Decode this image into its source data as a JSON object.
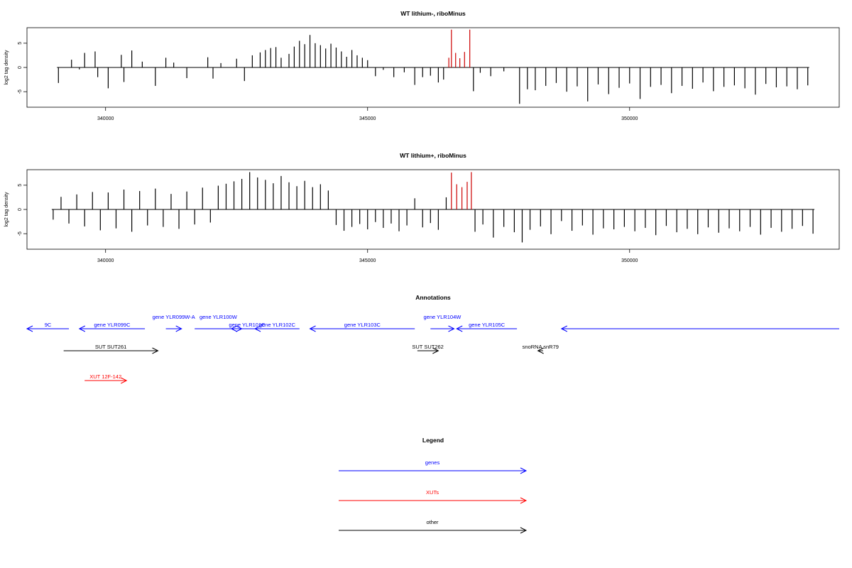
{
  "chart_data": [
    {
      "type": "bar",
      "title": "WT lithium-, riboMinus",
      "xlabel": "",
      "ylabel": "log2 tag density",
      "xlim": [
        338500,
        354000
      ],
      "ylim": [
        -8.2,
        8.2
      ],
      "xticks": [
        340000,
        345000,
        350000
      ],
      "xtick_labels": [
        "340000",
        "345000",
        "350000"
      ],
      "yticks": [
        -5,
        0,
        5
      ],
      "ytick_labels": [
        "-5",
        "0",
        "5"
      ],
      "series_colors": {
        "default": "#000000",
        "highlight": "#cc0000"
      },
      "highlight_range": [
        346550,
        347000
      ],
      "data": [
        [
          339100,
          -3.2
        ],
        [
          339350,
          1.6
        ],
        [
          339500,
          -0.4
        ],
        [
          339600,
          3.0
        ],
        [
          339800,
          3.3
        ],
        [
          339850,
          -2.0
        ],
        [
          340050,
          -4.3
        ],
        [
          340300,
          2.6
        ],
        [
          340350,
          -3.0
        ],
        [
          340500,
          3.5
        ],
        [
          340700,
          1.2
        ],
        [
          340950,
          -3.8
        ],
        [
          341150,
          2.0
        ],
        [
          341300,
          1.0
        ],
        [
          341550,
          -2.2
        ],
        [
          341950,
          2.1
        ],
        [
          342050,
          -2.3
        ],
        [
          342200,
          0.9
        ],
        [
          342500,
          1.8
        ],
        [
          342650,
          -2.8
        ],
        [
          342800,
          2.5
        ],
        [
          342950,
          3.1
        ],
        [
          343050,
          3.6
        ],
        [
          343150,
          4.0
        ],
        [
          343250,
          4.2
        ],
        [
          343350,
          2.0
        ],
        [
          343500,
          2.8
        ],
        [
          343600,
          4.3
        ],
        [
          343700,
          5.5
        ],
        [
          343800,
          4.8
        ],
        [
          343900,
          6.7
        ],
        [
          344000,
          5.0
        ],
        [
          344100,
          4.6
        ],
        [
          344200,
          3.9
        ],
        [
          344300,
          4.9
        ],
        [
          344400,
          4.1
        ],
        [
          344500,
          3.3
        ],
        [
          344600,
          2.2
        ],
        [
          344700,
          3.6
        ],
        [
          344800,
          2.5
        ],
        [
          344900,
          2.0
        ],
        [
          345000,
          1.5
        ],
        [
          345150,
          -1.8
        ],
        [
          345300,
          -0.5
        ],
        [
          345500,
          -2.0
        ],
        [
          345700,
          -1.0
        ],
        [
          345900,
          -3.6
        ],
        [
          346050,
          -2.0
        ],
        [
          346200,
          -1.7
        ],
        [
          346350,
          -3.1
        ],
        [
          346450,
          -2.5
        ],
        [
          346550,
          2.0
        ],
        [
          346600,
          7.8
        ],
        [
          346680,
          3.0
        ],
        [
          346760,
          1.9
        ],
        [
          346850,
          3.2
        ],
        [
          346950,
          7.8
        ],
        [
          347020,
          -4.9
        ],
        [
          347150,
          -1.1
        ],
        [
          347350,
          -1.8
        ],
        [
          347600,
          -0.8
        ],
        [
          347900,
          -7.5
        ],
        [
          348050,
          -4.5
        ],
        [
          348200,
          -4.7
        ],
        [
          348400,
          -3.8
        ],
        [
          348600,
          -3.2
        ],
        [
          348800,
          -5.0
        ],
        [
          349000,
          -3.9
        ],
        [
          349200,
          -7.0
        ],
        [
          349400,
          -3.5
        ],
        [
          349600,
          -5.5
        ],
        [
          349800,
          -4.2
        ],
        [
          350000,
          -3.3
        ],
        [
          350200,
          -6.5
        ],
        [
          350400,
          -4.0
        ],
        [
          350600,
          -3.6
        ],
        [
          350800,
          -5.3
        ],
        [
          351000,
          -3.8
        ],
        [
          351200,
          -4.4
        ],
        [
          351400,
          -3.1
        ],
        [
          351600,
          -4.9
        ],
        [
          351800,
          -4.0
        ],
        [
          352000,
          -3.7
        ],
        [
          352200,
          -4.3
        ],
        [
          352400,
          -5.6
        ],
        [
          352600,
          -3.4
        ],
        [
          352800,
          -4.1
        ],
        [
          353000,
          -3.9
        ],
        [
          353200,
          -4.5
        ],
        [
          353400,
          -3.7
        ]
      ]
    },
    {
      "type": "bar",
      "title": "WT lithium+, riboMinus",
      "xlabel": "",
      "ylabel": "log2 tag density",
      "xlim": [
        338500,
        354000
      ],
      "ylim": [
        -8.2,
        8.2
      ],
      "xticks": [
        340000,
        345000,
        350000
      ],
      "xtick_labels": [
        "340000",
        "345000",
        "350000"
      ],
      "yticks": [
        -5,
        0,
        5
      ],
      "ytick_labels": [
        "-5",
        "0",
        "5"
      ],
      "series_colors": {
        "default": "#000000",
        "highlight": "#cc0000"
      },
      "highlight_range": [
        346550,
        347000
      ],
      "data": [
        [
          339000,
          -2.1
        ],
        [
          339150,
          2.6
        ],
        [
          339300,
          -2.9
        ],
        [
          339450,
          3.1
        ],
        [
          339600,
          -3.5
        ],
        [
          339750,
          3.6
        ],
        [
          339900,
          -4.3
        ],
        [
          340050,
          3.5
        ],
        [
          340200,
          -3.9
        ],
        [
          340350,
          4.1
        ],
        [
          340500,
          -4.6
        ],
        [
          340650,
          3.8
        ],
        [
          340800,
          -3.3
        ],
        [
          340950,
          4.3
        ],
        [
          341100,
          -3.6
        ],
        [
          341250,
          3.2
        ],
        [
          341400,
          -4.0
        ],
        [
          341550,
          3.7
        ],
        [
          341700,
          -3.1
        ],
        [
          341850,
          4.5
        ],
        [
          342000,
          -2.7
        ],
        [
          342150,
          4.9
        ],
        [
          342300,
          5.3
        ],
        [
          342450,
          5.8
        ],
        [
          342600,
          6.3
        ],
        [
          342750,
          7.7
        ],
        [
          342900,
          6.6
        ],
        [
          343050,
          6.1
        ],
        [
          343200,
          5.4
        ],
        [
          343350,
          6.9
        ],
        [
          343500,
          5.6
        ],
        [
          343650,
          4.8
        ],
        [
          343800,
          5.9
        ],
        [
          343950,
          4.6
        ],
        [
          344100,
          5.2
        ],
        [
          344250,
          3.9
        ],
        [
          344400,
          -3.2
        ],
        [
          344550,
          -4.4
        ],
        [
          344700,
          -3.6
        ],
        [
          344850,
          -3.0
        ],
        [
          345000,
          -4.1
        ],
        [
          345150,
          -2.6
        ],
        [
          345300,
          -3.8
        ],
        [
          345450,
          -2.9
        ],
        [
          345600,
          -4.5
        ],
        [
          345750,
          -3.3
        ],
        [
          345900,
          2.3
        ],
        [
          346050,
          -3.7
        ],
        [
          346200,
          -2.8
        ],
        [
          346350,
          -4.2
        ],
        [
          346500,
          2.5
        ],
        [
          346600,
          7.6
        ],
        [
          346700,
          5.2
        ],
        [
          346800,
          4.6
        ],
        [
          346900,
          5.7
        ],
        [
          346980,
          7.7
        ],
        [
          347050,
          -4.6
        ],
        [
          347200,
          -3.1
        ],
        [
          347400,
          -5.8
        ],
        [
          347600,
          -3.6
        ],
        [
          347800,
          -4.7
        ],
        [
          347950,
          -6.8
        ],
        [
          348100,
          -4.2
        ],
        [
          348300,
          -3.5
        ],
        [
          348500,
          -5.1
        ],
        [
          348700,
          -2.4
        ],
        [
          348900,
          -4.4
        ],
        [
          349100,
          -3.3
        ],
        [
          349300,
          -5.2
        ],
        [
          349500,
          -3.9
        ],
        [
          349700,
          -4.1
        ],
        [
          349900,
          -3.6
        ],
        [
          350100,
          -4.5
        ],
        [
          350300,
          -3.8
        ],
        [
          350500,
          -5.3
        ],
        [
          350700,
          -3.4
        ],
        [
          350900,
          -4.7
        ],
        [
          351100,
          -4.0
        ],
        [
          351300,
          -5.1
        ],
        [
          351500,
          -3.7
        ],
        [
          351700,
          -4.8
        ],
        [
          351900,
          -3.9
        ],
        [
          352100,
          -4.5
        ],
        [
          352300,
          -3.6
        ],
        [
          352500,
          -5.2
        ],
        [
          352700,
          -3.8
        ],
        [
          352900,
          -4.6
        ],
        [
          353100,
          -4.0
        ],
        [
          353300,
          -3.4
        ],
        [
          353500,
          -5.0
        ]
      ]
    },
    {
      "type": "annotation-track",
      "title": "Annotations",
      "xlim": [
        338500,
        354000
      ],
      "features": [
        {
          "label": "9C",
          "start": 338500,
          "end": 339300,
          "strand": "-",
          "color": "#0000ff",
          "row": 0
        },
        {
          "label": "gene YLR099C",
          "start": 339500,
          "end": 340750,
          "strand": "-",
          "color": "#0000ff",
          "row": 0
        },
        {
          "label": "gene YLR099W-A",
          "start": 341150,
          "end": 341450,
          "strand": "+",
          "color": "#0000ff",
          "row": 0
        },
        {
          "label": "gene YLR100W",
          "start": 341700,
          "end": 342600,
          "strand": "+",
          "color": "#0000ff",
          "row": 0
        },
        {
          "label": "gene YLR101C",
          "start": 342400,
          "end": 343000,
          "strand": "-",
          "color": "#0000ff",
          "row": 0
        },
        {
          "label": "gene YLR102C",
          "start": 342850,
          "end": 343700,
          "strand": "-",
          "color": "#0000ff",
          "row": 0
        },
        {
          "label": "gene YLR103C",
          "start": 343900,
          "end": 345900,
          "strand": "-",
          "color": "#0000ff",
          "row": 0
        },
        {
          "label": "gene YLR104W",
          "start": 346200,
          "end": 346650,
          "strand": "+",
          "color": "#0000ff",
          "row": 0
        },
        {
          "label": "gene YLR105C",
          "start": 346700,
          "end": 347850,
          "strand": "-",
          "color": "#0000ff",
          "row": 0
        },
        {
          "label": "",
          "start": 348700,
          "end": 354000,
          "strand": "-",
          "color": "#0000ff",
          "row": 0
        },
        {
          "label": "SUT SUT261",
          "start": 339200,
          "end": 341000,
          "strand": "+",
          "color": "#000000",
          "row": 1
        },
        {
          "label": "SUT SUT262",
          "start": 345950,
          "end": 346350,
          "strand": "+",
          "color": "#000000",
          "row": 1
        },
        {
          "label": "snoRNA snR79",
          "start": 348250,
          "end": 348350,
          "strand": "-",
          "color": "#000000",
          "row": 1
        },
        {
          "label": "XUT 12F-142",
          "start": 339600,
          "end": 340400,
          "strand": "+",
          "color": "#ff0000",
          "row": 2
        }
      ]
    },
    {
      "type": "legend",
      "title": "Legend",
      "entries": [
        {
          "label": "genes",
          "color": "#0000ff"
        },
        {
          "label": "XUTs",
          "color": "#ff0000"
        },
        {
          "label": "other",
          "color": "#000000"
        }
      ]
    }
  ]
}
